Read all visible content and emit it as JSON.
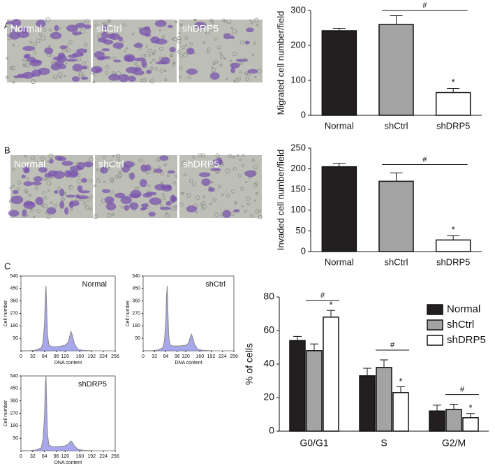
{
  "panel_labels": [
    "A",
    "B",
    "C"
  ],
  "micrographs": [
    {
      "labels": [
        "Normal",
        "shCtrl",
        "shDRP5"
      ]
    },
    {
      "labels": [
        "Normal",
        "shCtrl",
        "shDRP5"
      ]
    }
  ],
  "chart_data": [
    {
      "type": "bar",
      "ylabel": "Migrated cell number/field",
      "categories": [
        "Normal",
        "shCtrl",
        "shDRP5"
      ],
      "values": [
        242,
        260,
        65
      ],
      "errors": [
        7,
        25,
        12
      ],
      "colors": [
        "#231f20",
        "#a3a3a3",
        "#ffffff"
      ],
      "ylim": [
        0,
        300
      ],
      "yticks": [
        0,
        100,
        200,
        300
      ],
      "annotations": [
        {
          "text": "#",
          "from": 1,
          "to": 2
        },
        {
          "text": "*",
          "at": 2
        }
      ]
    },
    {
      "type": "bar",
      "ylabel": "Invaded cell number/field",
      "categories": [
        "Normal",
        "shCtrl",
        "shDRP5"
      ],
      "values": [
        205,
        170,
        28
      ],
      "errors": [
        8,
        20,
        10
      ],
      "colors": [
        "#231f20",
        "#a3a3a3",
        "#ffffff"
      ],
      "ylim": [
        0,
        250
      ],
      "yticks": [
        0,
        50,
        100,
        150,
        200,
        250
      ],
      "annotations": [
        {
          "text": "#",
          "from": 1,
          "to": 2
        },
        {
          "text": "*",
          "at": 2
        }
      ]
    },
    {
      "type": "area",
      "title": "Normal",
      "xlabel": "DNA content",
      "ylabel": "Cell number",
      "x": [
        20,
        40,
        55,
        60,
        64,
        66,
        68,
        70,
        72,
        76,
        85,
        100,
        120,
        128,
        132,
        136,
        140,
        145,
        155,
        170,
        200,
        256
      ],
      "values": [
        0,
        5,
        20,
        60,
        200,
        380,
        470,
        300,
        120,
        40,
        30,
        30,
        40,
        60,
        100,
        140,
        110,
        50,
        10,
        3,
        0,
        0
      ],
      "xlim": [
        0,
        256
      ],
      "ylim": [
        0,
        540
      ],
      "xticks": [
        0,
        32,
        64,
        96,
        120,
        160,
        192,
        224,
        256
      ],
      "yticks": [
        90,
        180,
        270,
        360,
        450,
        540
      ]
    },
    {
      "type": "area",
      "title": "shCtrl",
      "xlabel": "DNA content",
      "ylabel": "Cell number",
      "x": [
        20,
        40,
        55,
        60,
        64,
        66,
        68,
        70,
        72,
        76,
        85,
        100,
        120,
        128,
        132,
        136,
        140,
        145,
        155,
        170,
        200,
        256
      ],
      "values": [
        0,
        5,
        20,
        70,
        220,
        400,
        470,
        280,
        110,
        40,
        35,
        35,
        40,
        55,
        90,
        120,
        95,
        45,
        10,
        3,
        0,
        0
      ],
      "xlim": [
        0,
        256
      ],
      "ylim": [
        0,
        540
      ],
      "xticks": [
        0,
        32,
        64,
        96,
        120,
        160,
        192,
        224,
        256
      ],
      "yticks": [
        90,
        180,
        270,
        360,
        450,
        540
      ]
    },
    {
      "type": "area",
      "title": "shDRP5",
      "xlabel": "DNA content",
      "ylabel": "Cell number",
      "x": [
        20,
        40,
        55,
        60,
        64,
        66,
        68,
        70,
        72,
        76,
        85,
        100,
        120,
        128,
        132,
        136,
        140,
        145,
        155,
        170,
        200,
        256
      ],
      "values": [
        0,
        5,
        20,
        80,
        260,
        470,
        540,
        320,
        120,
        40,
        30,
        30,
        35,
        45,
        60,
        70,
        60,
        35,
        10,
        3,
        0,
        0
      ],
      "xlim": [
        0,
        256
      ],
      "ylim": [
        0,
        540
      ],
      "xticks": [
        0,
        32,
        64,
        96,
        120,
        160,
        192,
        224,
        256
      ],
      "yticks": [
        90,
        180,
        270,
        360,
        450,
        540
      ]
    },
    {
      "type": "grouped-bar",
      "ylabel": "% of cells",
      "legend": "upper right",
      "categories": [
        "G0/G1",
        "S",
        "G2/M"
      ],
      "series": [
        {
          "name": "Normal",
          "color": "#231f20",
          "values": [
            54,
            33,
            12
          ],
          "errors": [
            2.5,
            4.5,
            3.5
          ]
        },
        {
          "name": "shCtrl",
          "color": "#a3a3a3",
          "values": [
            48,
            38,
            13
          ],
          "errors": [
            4,
            4.5,
            3
          ]
        },
        {
          "name": "shDRP5",
          "color": "#ffffff",
          "values": [
            68,
            23,
            8
          ],
          "errors": [
            4,
            3.5,
            2.5
          ]
        }
      ],
      "ylim": [
        0,
        80
      ],
      "yticks": [
        0,
        20,
        40,
        60,
        80
      ],
      "annotations": [
        {
          "text": "#",
          "category": 0,
          "from": 1,
          "to": 2
        },
        {
          "text": "*",
          "category": 0,
          "at": 2
        },
        {
          "text": "#",
          "category": 1,
          "from": 1,
          "to": 2
        },
        {
          "text": "*",
          "category": 1,
          "at": 2
        },
        {
          "text": "#",
          "category": 2,
          "from": 1,
          "to": 2
        },
        {
          "text": "*",
          "category": 2,
          "at": 2
        }
      ]
    }
  ]
}
